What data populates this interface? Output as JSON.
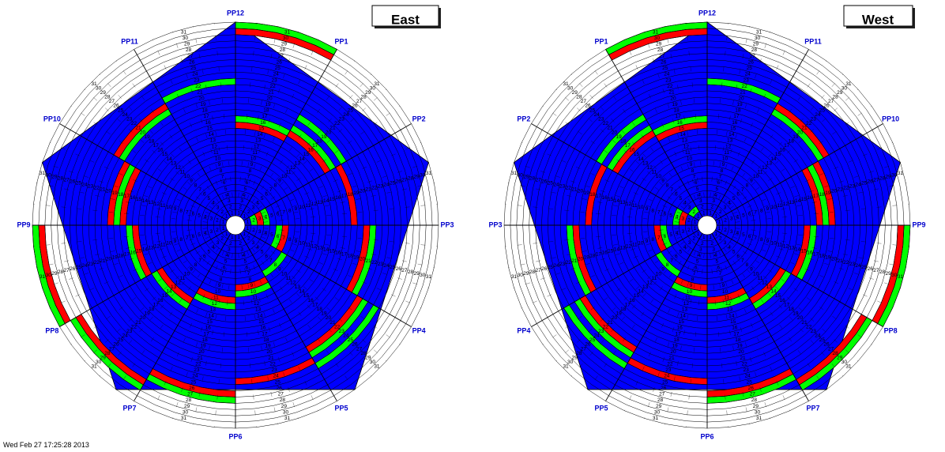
{
  "colors": {
    "background": "#0000ff",
    "bad": "#ff0000",
    "good": "#00ff00",
    "grid": "#000000",
    "label": "#0000cc"
  },
  "rows": 31,
  "footer": "Wed Feb 27 17:25:28 2013",
  "panels": [
    {
      "title": "East",
      "direction": "clockwise",
      "sectors": [
        "PP1",
        "PP2",
        "PP3",
        "PP4",
        "PP5",
        "PP6",
        "PP7",
        "PP8",
        "PP9",
        "PP10",
        "PP11",
        "PP12"
      ],
      "cells": [
        {
          "sector": "PP1",
          "row": 15,
          "status": "bad"
        },
        {
          "sector": "PP1",
          "row": 31,
          "status": "good"
        },
        {
          "sector": "PP1",
          "row": 30,
          "status": "bad"
        },
        {
          "sector": "PP1",
          "row": 16,
          "status": "good"
        },
        {
          "sector": "PP2",
          "row": 17,
          "status": "good"
        },
        {
          "sector": "PP2",
          "row": 16,
          "status": "bad"
        },
        {
          "sector": "PP2",
          "row": 19,
          "status": "good"
        },
        {
          "sector": "PP3",
          "row": 18,
          "status": "bad"
        },
        {
          "sector": "PP3",
          "row": 2,
          "status": "good"
        },
        {
          "sector": "PP3",
          "row": 4,
          "status": "good"
        },
        {
          "sector": "PP3",
          "row": 3,
          "status": "bad"
        },
        {
          "sector": "PP4",
          "row": 21,
          "status": "good"
        },
        {
          "sector": "PP4",
          "row": 20,
          "status": "bad"
        },
        {
          "sector": "PP4",
          "row": 6,
          "status": "good"
        },
        {
          "sector": "PP4",
          "row": 7,
          "status": "bad"
        },
        {
          "sector": "PP5",
          "row": 23,
          "status": "good"
        },
        {
          "sector": "PP5",
          "row": 22,
          "status": "bad"
        },
        {
          "sector": "PP5",
          "row": 8,
          "status": "good"
        },
        {
          "sector": "PP5",
          "row": 25,
          "status": "good"
        },
        {
          "sector": "PP6",
          "row": 9,
          "status": "bad"
        },
        {
          "sector": "PP6",
          "row": 10,
          "status": "good"
        },
        {
          "sector": "PP6",
          "row": 24,
          "status": "bad"
        },
        {
          "sector": "PP7",
          "row": 11,
          "status": "bad"
        },
        {
          "sector": "PP7",
          "row": 27,
          "status": "good"
        },
        {
          "sector": "PP7",
          "row": 12,
          "status": "good"
        },
        {
          "sector": "PP7",
          "row": 26,
          "status": "bad"
        },
        {
          "sector": "PP8",
          "row": 13,
          "status": "bad"
        },
        {
          "sector": "PP8",
          "row": 29,
          "status": "good"
        },
        {
          "sector": "PP8",
          "row": 28,
          "status": "bad"
        },
        {
          "sector": "PP8",
          "row": 14,
          "status": "good"
        },
        {
          "sector": "PP9",
          "row": 31,
          "status": "good"
        },
        {
          "sector": "PP9",
          "row": 15,
          "status": "bad"
        },
        {
          "sector": "PP9",
          "row": 30,
          "status": "bad"
        },
        {
          "sector": "PP9",
          "row": 16,
          "status": "good"
        },
        {
          "sector": "PP10",
          "row": 17,
          "status": "bad"
        },
        {
          "sector": "PP10",
          "row": 18,
          "status": "good"
        },
        {
          "sector": "PP10",
          "row": 19,
          "status": "bad"
        },
        {
          "sector": "PP11",
          "row": 20,
          "status": "good"
        },
        {
          "sector": "PP11",
          "row": 21,
          "status": "bad"
        },
        {
          "sector": "PP12",
          "row": 22,
          "status": "good"
        }
      ]
    },
    {
      "title": "West",
      "direction": "counterclockwise",
      "sectors": [
        "PP1",
        "PP2",
        "PP3",
        "PP4",
        "PP5",
        "PP6",
        "PP7",
        "PP8",
        "PP9",
        "PP10",
        "PP11",
        "PP12"
      ],
      "cells": [
        {
          "sector": "PP1",
          "row": 15,
          "status": "bad"
        },
        {
          "sector": "PP1",
          "row": 31,
          "status": "good"
        },
        {
          "sector": "PP1",
          "row": 30,
          "status": "bad"
        },
        {
          "sector": "PP1",
          "row": 16,
          "status": "good"
        },
        {
          "sector": "PP2",
          "row": 17,
          "status": "good"
        },
        {
          "sector": "PP2",
          "row": 16,
          "status": "bad"
        },
        {
          "sector": "PP2",
          "row": 19,
          "status": "good"
        },
        {
          "sector": "PP2",
          "row": 2,
          "status": "good"
        },
        {
          "sector": "PP3",
          "row": 18,
          "status": "bad"
        },
        {
          "sector": "PP3",
          "row": 4,
          "status": "good"
        },
        {
          "sector": "PP3",
          "row": 3,
          "status": "bad"
        },
        {
          "sector": "PP4",
          "row": 21,
          "status": "good"
        },
        {
          "sector": "PP4",
          "row": 20,
          "status": "bad"
        },
        {
          "sector": "PP4",
          "row": 6,
          "status": "good"
        },
        {
          "sector": "PP4",
          "row": 7,
          "status": "bad"
        },
        {
          "sector": "PP5",
          "row": 23,
          "status": "good"
        },
        {
          "sector": "PP5",
          "row": 22,
          "status": "bad"
        },
        {
          "sector": "PP5",
          "row": 8,
          "status": "good"
        },
        {
          "sector": "PP5",
          "row": 25,
          "status": "good"
        },
        {
          "sector": "PP6",
          "row": 9,
          "status": "bad"
        },
        {
          "sector": "PP6",
          "row": 10,
          "status": "good"
        },
        {
          "sector": "PP6",
          "row": 24,
          "status": "bad"
        },
        {
          "sector": "PP7",
          "row": 11,
          "status": "bad"
        },
        {
          "sector": "PP7",
          "row": 27,
          "status": "good"
        },
        {
          "sector": "PP7",
          "row": 12,
          "status": "good"
        },
        {
          "sector": "PP7",
          "row": 26,
          "status": "bad"
        },
        {
          "sector": "PP8",
          "row": 13,
          "status": "bad"
        },
        {
          "sector": "PP8",
          "row": 29,
          "status": "good"
        },
        {
          "sector": "PP8",
          "row": 28,
          "status": "bad"
        },
        {
          "sector": "PP8",
          "row": 14,
          "status": "good"
        },
        {
          "sector": "PP9",
          "row": 31,
          "status": "good"
        },
        {
          "sector": "PP9",
          "row": 30,
          "status": "bad"
        },
        {
          "sector": "PP9",
          "row": 15,
          "status": "bad"
        },
        {
          "sector": "PP9",
          "row": 16,
          "status": "good"
        },
        {
          "sector": "PP10",
          "row": 17,
          "status": "bad"
        },
        {
          "sector": "PP10",
          "row": 18,
          "status": "good"
        },
        {
          "sector": "PP10",
          "row": 19,
          "status": "bad"
        },
        {
          "sector": "PP11",
          "row": 20,
          "status": "good"
        },
        {
          "sector": "PP11",
          "row": 21,
          "status": "bad"
        },
        {
          "sector": "PP12",
          "row": 22,
          "status": "good"
        }
      ]
    }
  ]
}
